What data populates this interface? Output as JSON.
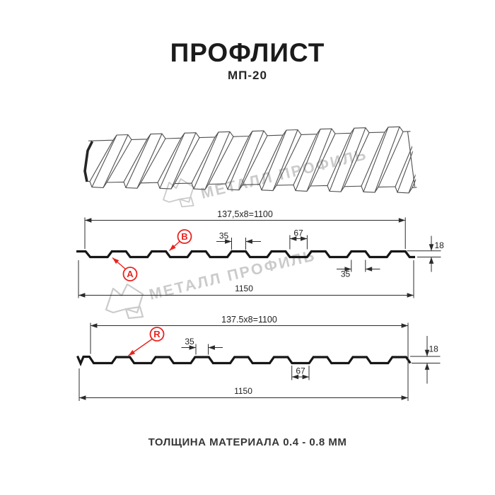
{
  "page": {
    "title": "ПРОФЛИСТ",
    "subtitle": "МП-20",
    "footer": "ТОЛЩИНА МАТЕРИАЛА 0.4 - 0.8 ММ"
  },
  "watermark": {
    "text": "МЕТАЛЛ ПРОФИЛЬ"
  },
  "colors": {
    "red": "#e8231e",
    "line": "#1f1f1f",
    "watermark_gray": "#cbcbcb"
  },
  "section_wall": {
    "label_a": "A",
    "label_b": "B",
    "dim_pitch": "137,5x8=1100",
    "dim_rib_top": "35",
    "dim_valley": "67",
    "dim_height": "18",
    "dim_rib_bottom": "35",
    "dim_total": "1150"
  },
  "section_roof": {
    "label_r": "R",
    "dim_pitch": "137.5x8=1100",
    "dim_rib_top": "35",
    "dim_valley": "67",
    "dim_height": "18",
    "dim_total": "1150"
  }
}
